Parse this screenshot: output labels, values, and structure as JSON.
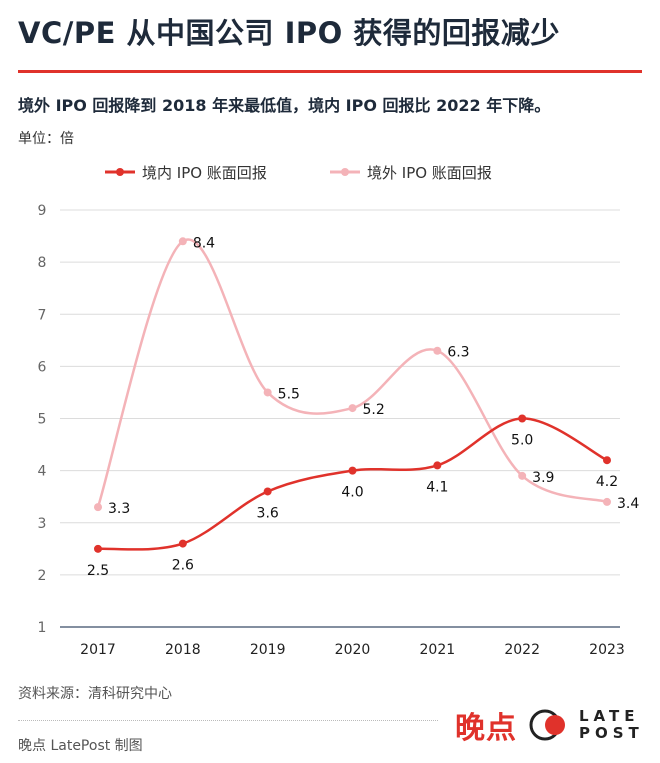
{
  "title": "VC/PE 从中国公司 IPO 获得的回报减少",
  "subtitle": "境外 IPO 回报降到 2018 年来最低值，境内 IPO 回报比 2022 年下降。",
  "unit": "单位：倍",
  "source": "资料来源：清科研究中心",
  "credit": "晚点 LatePost 制图",
  "logo": {
    "cn": "晚点",
    "en1": "LATE",
    "en2": "POST"
  },
  "colors": {
    "accent": "#e0322b",
    "domestic": "#e0322b",
    "foreign": "#f4b3b8"
  },
  "chart_data": {
    "type": "line",
    "categories": [
      "2017",
      "2018",
      "2019",
      "2020",
      "2021",
      "2022",
      "2023"
    ],
    "ylim": [
      1,
      9
    ],
    "yticks": [
      "1",
      "2",
      "3",
      "4",
      "5",
      "6",
      "7",
      "8",
      "9"
    ],
    "grid": true,
    "legend": "top",
    "series": [
      {
        "name": "境内 IPO 账面回报",
        "values": [
          2.5,
          2.6,
          3.6,
          4.0,
          4.1,
          5.0,
          4.2
        ],
        "labels": [
          "2.5",
          "2.6",
          "3.6",
          "4.0",
          "4.1",
          "5.0",
          "4.2"
        ]
      },
      {
        "name": "境外 IPO 账面回报",
        "values": [
          3.3,
          8.4,
          5.5,
          5.2,
          6.3,
          3.9,
          3.4
        ],
        "labels": [
          "3.3",
          "8.4",
          "5.5",
          "5.2",
          "6.3",
          "3.9",
          "3.4"
        ]
      }
    ]
  }
}
